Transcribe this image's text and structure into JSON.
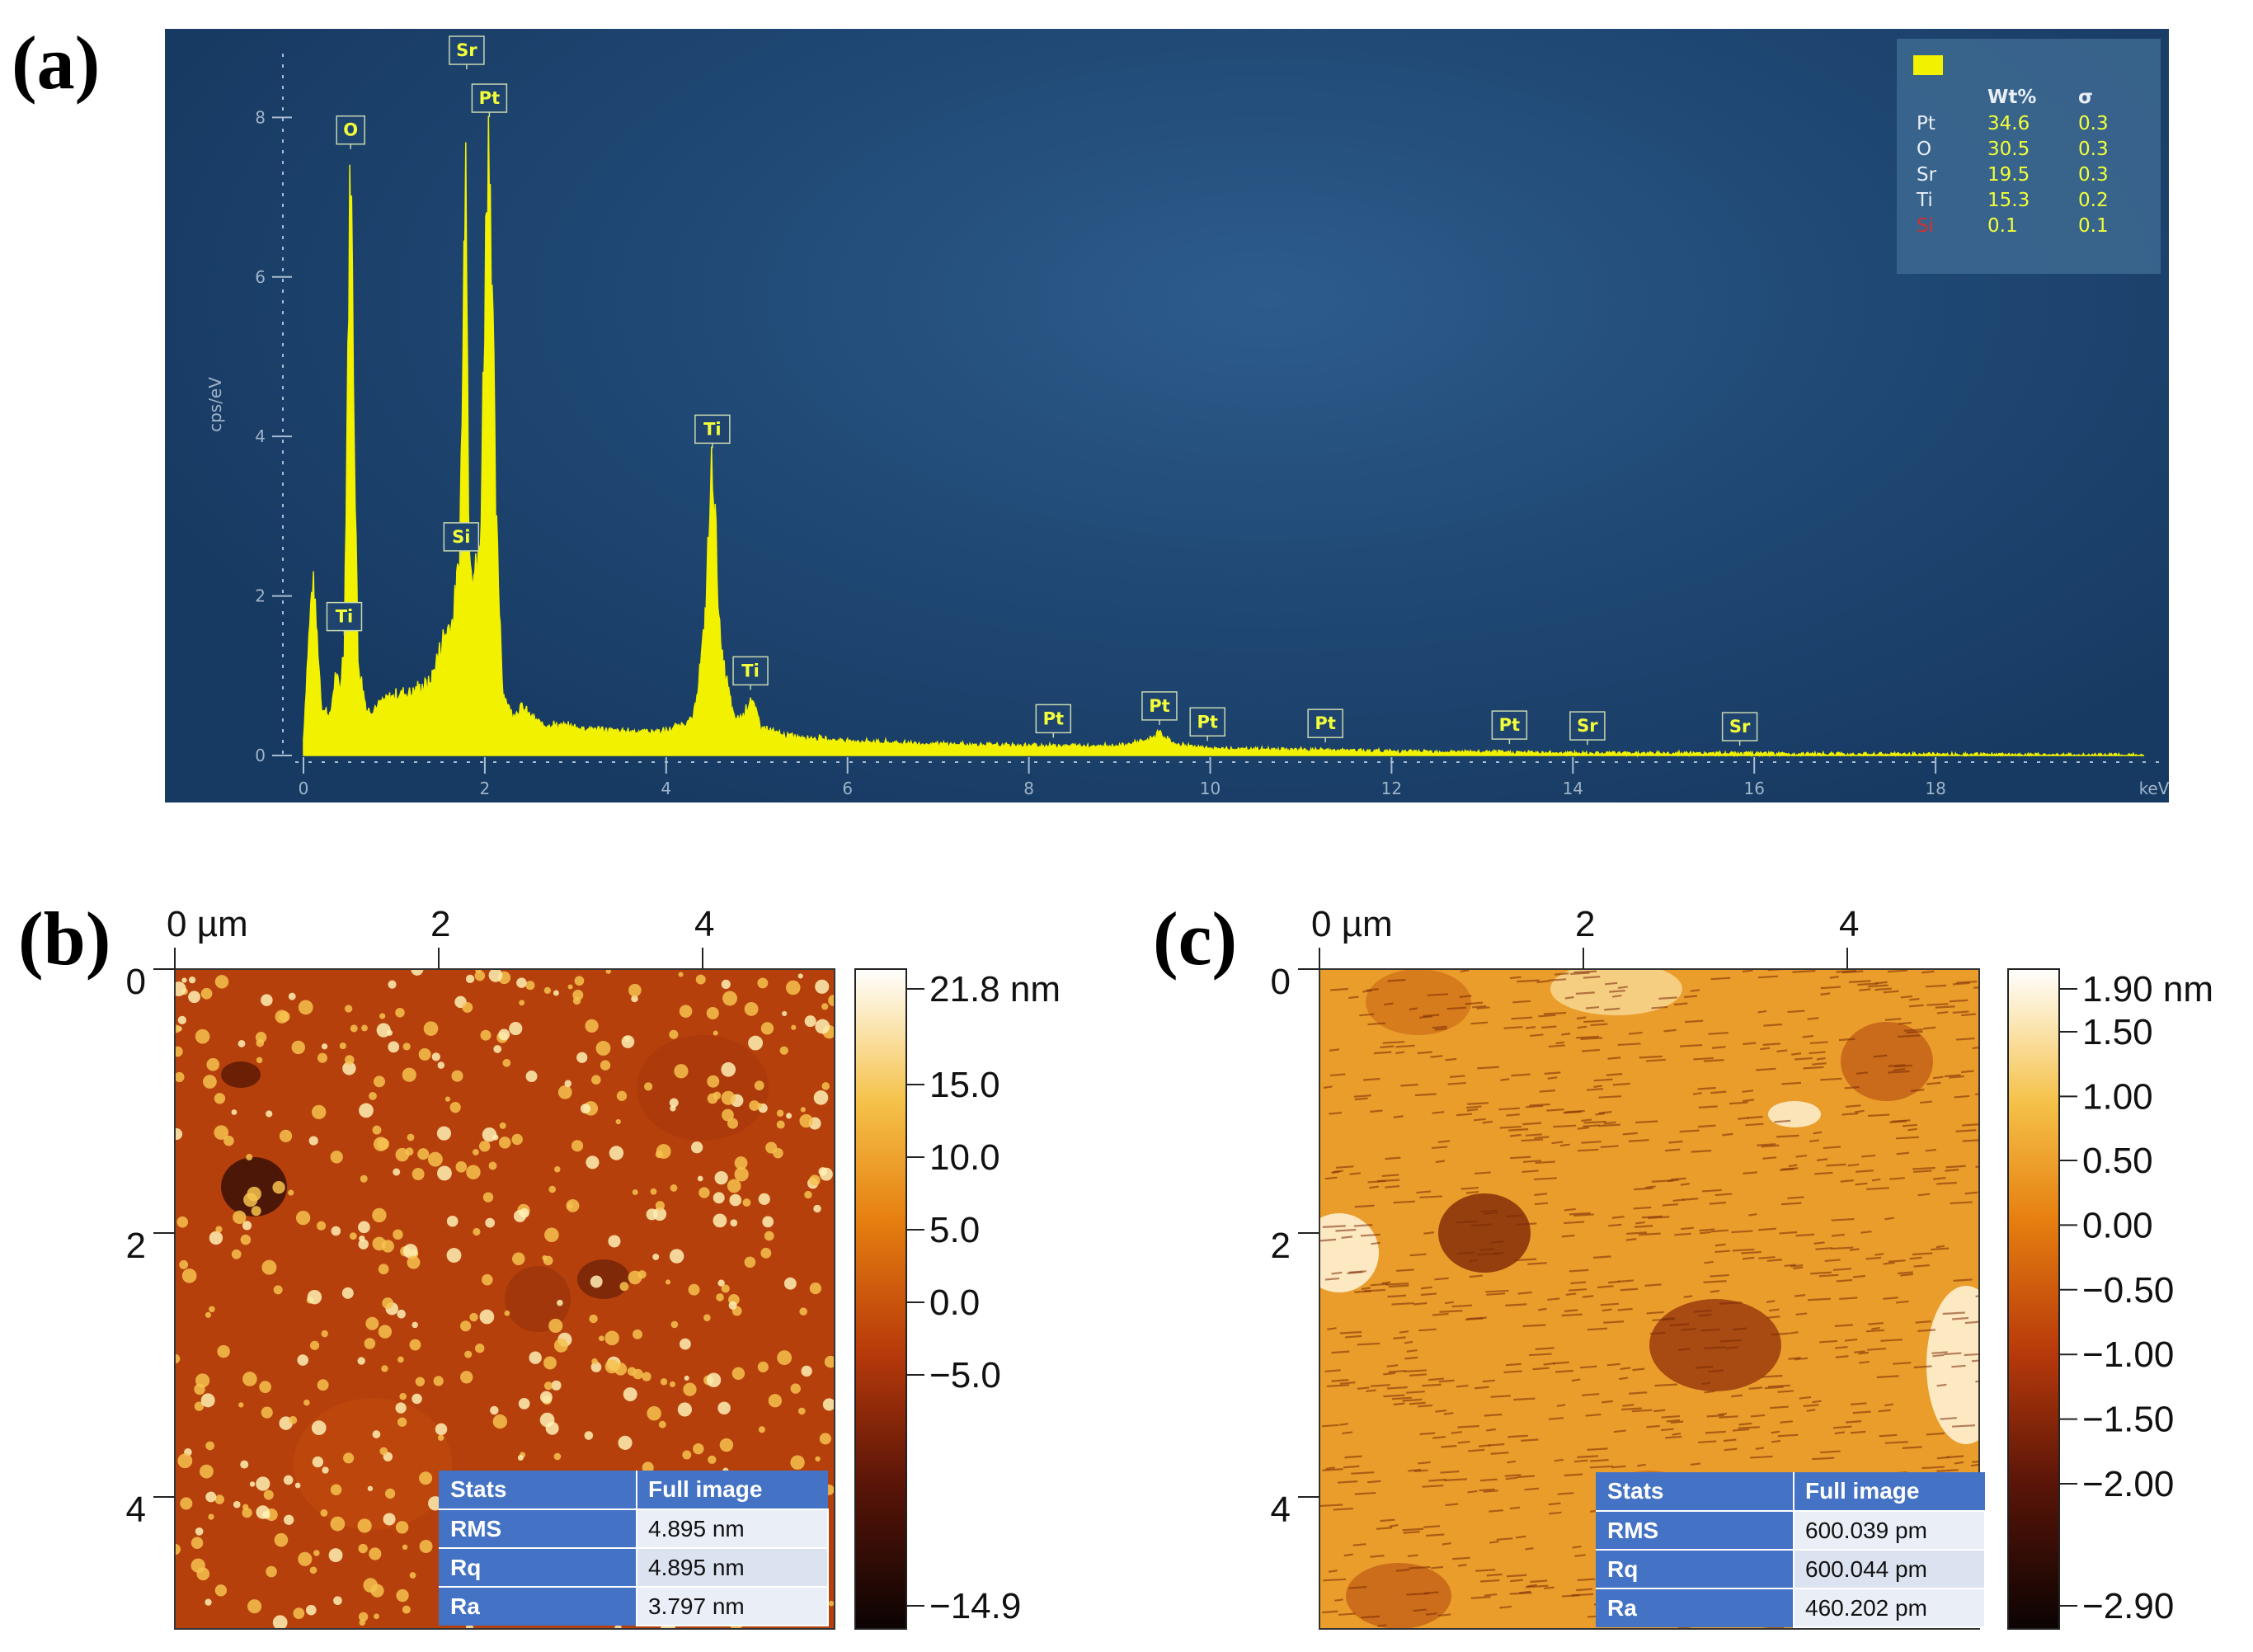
{
  "panels": {
    "a": "(a)",
    "b": "(b)",
    "c": "(c)"
  },
  "chart_data": [
    {
      "type": "line",
      "panel": "(a)",
      "description_axis": {
        "xlabel": "keV",
        "ylabel": "cps/eV",
        "xlim": [
          0,
          20.3
        ],
        "ylim": [
          0,
          8.8
        ]
      },
      "x_ticks": [
        "0",
        "2",
        "4",
        "6",
        "8",
        "10",
        "12",
        "14",
        "16",
        "18"
      ],
      "y_ticks": [
        "0",
        "2",
        "4",
        "6",
        "8"
      ],
      "series": [
        {
          "x": [
            0.0,
            0.05,
            0.1,
            0.15,
            0.2,
            0.3,
            0.35,
            0.4,
            0.45,
            0.5,
            0.52,
            0.55,
            0.6,
            0.7,
            0.8,
            1.0,
            1.2,
            1.4,
            1.55,
            1.65,
            1.72,
            1.76,
            1.79,
            1.82,
            1.86,
            1.9,
            1.95,
            2.02,
            2.05,
            2.08,
            2.12,
            2.2,
            2.3,
            2.4,
            2.6,
            3.0,
            3.5,
            4.0,
            4.3,
            4.42,
            4.51,
            4.6,
            4.75,
            4.85,
            4.93,
            5.05,
            5.3,
            6.0,
            7.0,
            8.0,
            9.0,
            9.3,
            9.44,
            9.6,
            10.0,
            11.0,
            12.0,
            13.0,
            14.0,
            16.0,
            20.3
          ],
          "y": [
            0.2,
            1.3,
            2.2,
            1.5,
            0.6,
            0.5,
            1.0,
            0.8,
            1.4,
            6.0,
            7.5,
            5.0,
            1.2,
            0.55,
            0.6,
            0.75,
            0.8,
            0.9,
            1.5,
            1.7,
            2.4,
            5.0,
            8.5,
            3.0,
            2.4,
            2.3,
            2.6,
            7.0,
            7.9,
            6.0,
            3.0,
            0.8,
            0.5,
            0.6,
            0.4,
            0.35,
            0.3,
            0.3,
            0.45,
            1.5,
            3.75,
            1.3,
            0.45,
            0.5,
            0.72,
            0.35,
            0.25,
            0.18,
            0.14,
            0.12,
            0.12,
            0.18,
            0.28,
            0.14,
            0.08,
            0.07,
            0.05,
            0.04,
            0.03,
            0.02,
            0.0
          ]
        }
      ],
      "peak_labels": [
        {
          "text": "O",
          "x": 0.52,
          "y": 7.5
        },
        {
          "text": "Sr",
          "x": 1.8,
          "y": 8.5
        },
        {
          "text": "Pt",
          "x": 2.05,
          "y": 7.9
        },
        {
          "text": "Ti",
          "x": 0.45,
          "y": 1.4
        },
        {
          "text": "Si",
          "x": 1.74,
          "y": 2.4
        },
        {
          "text": "Ti",
          "x": 4.51,
          "y": 3.75
        },
        {
          "text": "Ti",
          "x": 4.93,
          "y": 0.72
        },
        {
          "text": "Pt",
          "x": 8.27,
          "y": 0.12
        },
        {
          "text": "Pt",
          "x": 9.44,
          "y": 0.28
        },
        {
          "text": "Pt",
          "x": 9.97,
          "y": 0.08
        },
        {
          "text": "Pt",
          "x": 11.27,
          "y": 0.06
        },
        {
          "text": "Pt",
          "x": 13.3,
          "y": 0.04
        },
        {
          "text": "Sr",
          "x": 14.16,
          "y": 0.03
        },
        {
          "text": "Sr",
          "x": 15.84,
          "y": 0.02
        }
      ],
      "legend": {
        "headers": [
          "Wt%",
          "σ"
        ],
        "rows": [
          {
            "el": "Pt",
            "wt": "34.6",
            "sigma": "0.3"
          },
          {
            "el": "O",
            "wt": "30.5",
            "sigma": "0.3"
          },
          {
            "el": "Sr",
            "wt": "19.5",
            "sigma": "0.3"
          },
          {
            "el": "Ti",
            "wt": "15.3",
            "sigma": "0.2"
          },
          {
            "el": "Si",
            "wt": "0.1",
            "sigma": "0.1"
          }
        ],
        "placement": "top-right"
      },
      "colors": {
        "spectrum": "#f2f200",
        "background": "#214a77",
        "si_label": "#d13030"
      }
    },
    {
      "type": "heatmap",
      "panel": "(b)",
      "x_ticks": [
        "0 µm",
        "2",
        "4"
      ],
      "y_ticks": [
        "0",
        "2",
        "4"
      ],
      "colorbar_ticks": [
        "21.8 nm",
        "15.0",
        "10.0",
        "5.0",
        "0.0",
        "−5.0",
        "−14.9"
      ],
      "colorbar_range": [
        -14.9,
        21.8
      ],
      "stats": {
        "header": [
          "Stats",
          "Full image"
        ],
        "rows": [
          [
            "RMS",
            "4.895 nm"
          ],
          [
            "Rq",
            "4.895 nm"
          ],
          [
            "Ra",
            "3.797 nm"
          ]
        ]
      }
    },
    {
      "type": "heatmap",
      "panel": "(c)",
      "x_ticks": [
        "0 µm",
        "2",
        "4"
      ],
      "y_ticks": [
        "0",
        "2",
        "4"
      ],
      "colorbar_ticks": [
        "1.90 nm",
        "1.50",
        "1.00",
        "0.50",
        "0.00",
        "−0.50",
        "−1.00",
        "−1.50",
        "−2.00",
        "−2.90"
      ],
      "colorbar_range": [
        -2.9,
        1.9
      ],
      "stats": {
        "header": [
          "Stats",
          "Full image"
        ],
        "rows": [
          [
            "RMS",
            "600.039 pm"
          ],
          [
            "Rq",
            "600.044 pm"
          ],
          [
            "Ra",
            "460.202 pm"
          ]
        ]
      }
    }
  ]
}
